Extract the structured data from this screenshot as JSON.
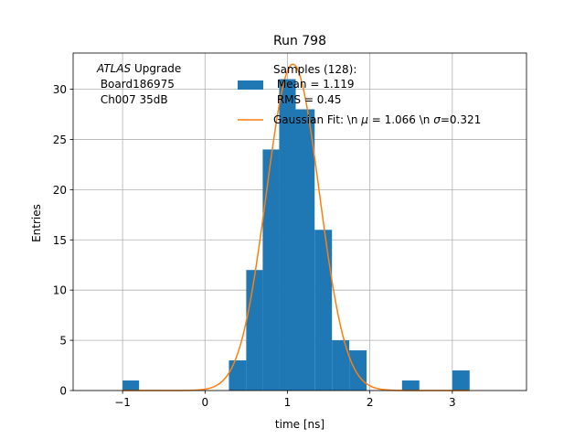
{
  "chart_data": {
    "type": "bar",
    "title": "Run 798",
    "xlabel": "time [ns]",
    "ylabel": "Entries",
    "xlim": [
      -1.6,
      3.9
    ],
    "ylim": [
      0,
      33.6
    ],
    "xticks": [
      -1,
      0,
      1,
      2,
      3
    ],
    "yticks": [
      0,
      5,
      10,
      15,
      20,
      25,
      30
    ],
    "grid": true,
    "legend_position": "top-center",
    "annotation": {
      "prefix": "ATLAS",
      "line1_rest": " Upgrade",
      "line2": " Board186975",
      "line3": " Ch007 35dB"
    },
    "histogram": {
      "name_lines": [
        "Samples (128):",
        " Mean = 1.119",
        " RMS = 0.45"
      ],
      "color": "#1f77b4",
      "bins": [
        {
          "x0": -1.0,
          "x1": -0.8,
          "count": 1
        },
        {
          "x0": 0.29,
          "x1": 0.5,
          "count": 3
        },
        {
          "x0": 0.5,
          "x1": 0.7,
          "count": 12
        },
        {
          "x0": 0.7,
          "x1": 0.9,
          "count": 24
        },
        {
          "x0": 0.9,
          "x1": 1.1,
          "count": 31
        },
        {
          "x0": 1.1,
          "x1": 1.33,
          "count": 28
        },
        {
          "x0": 1.33,
          "x1": 1.54,
          "count": 16
        },
        {
          "x0": 1.54,
          "x1": 1.75,
          "count": 5
        },
        {
          "x0": 1.75,
          "x1": 1.96,
          "count": 4
        },
        {
          "x0": 2.39,
          "x1": 2.6,
          "count": 1
        },
        {
          "x0": 3.0,
          "x1": 3.21,
          "count": 2
        }
      ]
    },
    "fit": {
      "name": "Gaussian Fit: \\n $\\mu$ = 1.066 \\n $\\sigma$=0.321",
      "legend_parts": [
        "Gaussian Fit: \\n ",
        "μ",
        " = 1.066 \\n ",
        "σ",
        "=0.321"
      ],
      "color": "#ff7f0e",
      "mu": 1.066,
      "sigma": 0.321,
      "amplitude": 32.5,
      "x_range": [
        -1.0,
        3.21
      ]
    }
  }
}
